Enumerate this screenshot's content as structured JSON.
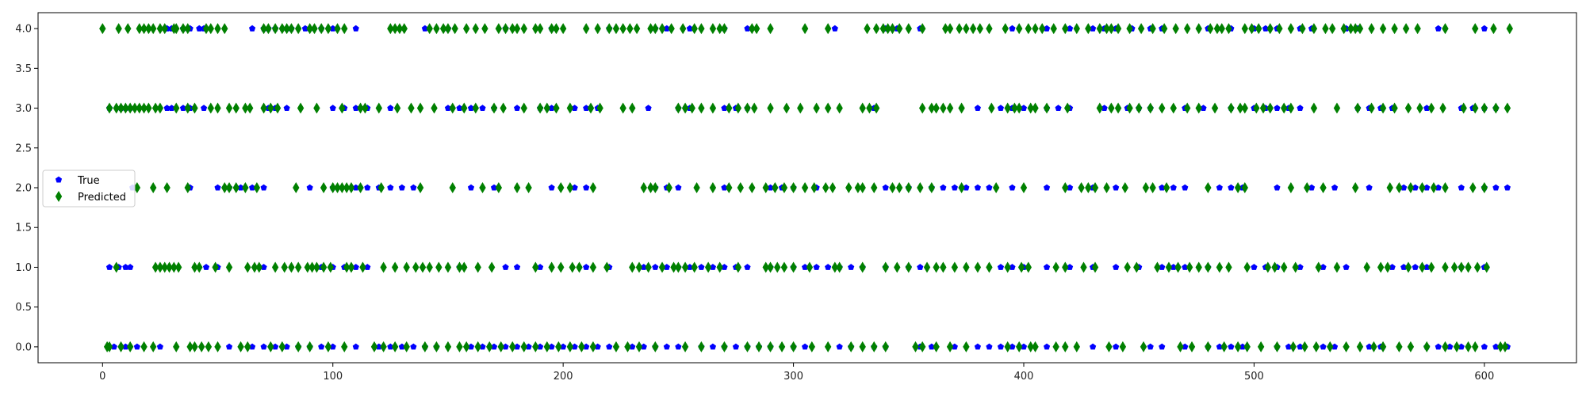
{
  "chart_data": {
    "type": "scatter",
    "title": "",
    "xlabel": "",
    "ylabel": "",
    "xlim": [
      -28,
      640
    ],
    "ylim": [
      -0.2,
      4.2
    ],
    "x_ticks": [
      0,
      100,
      200,
      300,
      400,
      500,
      600
    ],
    "x_tick_labels": [
      "0",
      "100",
      "200",
      "300",
      "400",
      "500",
      "600"
    ],
    "y_ticks": [
      0.0,
      0.5,
      1.0,
      1.5,
      2.0,
      2.5,
      3.0,
      3.5,
      4.0
    ],
    "y_tick_labels": [
      "0.0",
      "0.5",
      "1.0",
      "1.5",
      "2.0",
      "2.5",
      "3.0",
      "3.5",
      "4.0"
    ],
    "grid": false,
    "legend_position": "center-left",
    "legend": [
      {
        "label": "True",
        "color": "#0000ff",
        "marker": "pentagon"
      },
      {
        "label": "Predicted",
        "color": "#008000",
        "marker": "thin-diamond"
      }
    ],
    "series": [
      {
        "name": "True",
        "color": "#0000ff",
        "marker": "pentagon",
        "points": [
          {
            "y": 4,
            "x": [
              28,
              30,
              35,
              38,
              42,
              44,
              65,
              70,
              72,
              75,
              80,
              82,
              88,
              90,
              95,
              100,
              110,
              140,
              150,
              175,
              195,
              220,
              240,
              245,
              255,
              270,
              280,
              318,
              340,
              345,
              355,
              395,
              410,
              420,
              430,
              435,
              440,
              447,
              455,
              460,
              480,
              490,
              500,
              505,
              510,
              520,
              525,
              540,
              545,
              580,
              600
            ]
          },
          {
            "y": 3,
            "x": [
              3,
              8,
              10,
              12,
              28,
              30,
              35,
              38,
              44,
              72,
              75,
              80,
              100,
              105,
              110,
              115,
              125,
              150,
              155,
              160,
              165,
              170,
              180,
              190,
              195,
              205,
              210,
              215,
              237,
              250,
              255,
              270,
              275,
              280,
              335,
              380,
              390,
              395,
              400,
              410,
              415,
              420,
              435,
              445,
              450,
              455,
              470,
              478,
              490,
              500,
              505,
              510,
              515,
              520,
              545,
              550,
              555,
              560,
              575,
              590,
              595,
              600,
              605
            ]
          },
          {
            "y": 2,
            "x": [
              13,
              14,
              38,
              50,
              55,
              60,
              65,
              70,
              90,
              100,
              110,
              115,
              120,
              125,
              130,
              135,
              160,
              170,
              195,
              205,
              210,
              240,
              245,
              250,
              270,
              290,
              295,
              300,
              310,
              340,
              350,
              360,
              365,
              370,
              375,
              380,
              385,
              395,
              410,
              420,
              430,
              440,
              460,
              465,
              470,
              485,
              490,
              495,
              510,
              525,
              535,
              550,
              565,
              570,
              575,
              580,
              590,
              600,
              605,
              610
            ]
          },
          {
            "y": 1,
            "x": [
              3,
              7,
              10,
              12,
              45,
              50,
              70,
              95,
              100,
              105,
              110,
              115,
              155,
              175,
              180,
              190,
              210,
              220,
              235,
              240,
              245,
              250,
              255,
              260,
              265,
              270,
              275,
              280,
              290,
              300,
              305,
              310,
              315,
              320,
              325,
              330,
              340,
              350,
              355,
              390,
              395,
              400,
              410,
              420,
              430,
              440,
              450,
              460,
              465,
              470,
              480,
              500,
              505,
              510,
              520,
              530,
              540,
              560,
              565,
              570,
              575,
              590,
              600
            ]
          },
          {
            "y": 0,
            "x": [
              5,
              10,
              15,
              25,
              55,
              65,
              70,
              75,
              80,
              85,
              90,
              95,
              100,
              110,
              120,
              125,
              130,
              135,
              140,
              145,
              160,
              165,
              170,
              175,
              180,
              185,
              190,
              195,
              200,
              205,
              210,
              215,
              220,
              230,
              235,
              240,
              245,
              250,
              260,
              265,
              270,
              275,
              280,
              285,
              290,
              300,
              305,
              320,
              325,
              335,
              340,
              355,
              360,
              370,
              380,
              385,
              390,
              395,
              400,
              410,
              430,
              440,
              455,
              460,
              470,
              480,
              485,
              490,
              495,
              510,
              515,
              520,
              530,
              535,
              550,
              555,
              575,
              580,
              585,
              590,
              600,
              605,
              610
            ]
          }
        ]
      },
      {
        "name": "Predicted",
        "color": "#008000",
        "marker": "thin-diamond",
        "points": [
          {
            "y": 4,
            "x": [
              0,
              7,
              11,
              16,
              18,
              20,
              22,
              25,
              27,
              31,
              32,
              35,
              37,
              45,
              47,
              50,
              53,
              70,
              72,
              75,
              78,
              80,
              82,
              85,
              90,
              92,
              95,
              98,
              102,
              105,
              125,
              127,
              129,
              131,
              142,
              145,
              148,
              150,
              153,
              158,
              162,
              166,
              172,
              175,
              178,
              180,
              183,
              188,
              190,
              195,
              197,
              200,
              210,
              215,
              220,
              223,
              226,
              229,
              232,
              238,
              240,
              243,
              247,
              252,
              257,
              260,
              265,
              268,
              270,
              282,
              284,
              290,
              305,
              315,
              332,
              336,
              339,
              341,
              343,
              346,
              350,
              356,
              366,
              368,
              372,
              375,
              378,
              381,
              385,
              392,
              398,
              402,
              405,
              408,
              413,
              418,
              423,
              428,
              433,
              436,
              438,
              441,
              446,
              451,
              456,
              461,
              466,
              471,
              476,
              481,
              484,
              486,
              489,
              496,
              499,
              502,
              507,
              511,
              516,
              521,
              526,
              531,
              534,
              539,
              542,
              544,
              546,
              551,
              556,
              561,
              566,
              571,
              583,
              596,
              604,
              611
            ]
          },
          {
            "y": 3,
            "x": [
              3,
              6,
              8,
              10,
              12,
              14,
              16,
              18,
              20,
              23,
              25,
              32,
              37,
              40,
              47,
              50,
              55,
              58,
              62,
              64,
              70,
              73,
              76,
              86,
              93,
              104,
              112,
              114,
              120,
              128,
              134,
              138,
              144,
              152,
              157,
              162,
              170,
              174,
              183,
              190,
              193,
              197,
              203,
              212,
              216,
              226,
              230,
              250,
              253,
              256,
              260,
              265,
              272,
              276,
              280,
              283,
              290,
              297,
              303,
              310,
              315,
              320,
              330,
              333,
              336,
              356,
              360,
              362,
              365,
              368,
              373,
              386,
              393,
              396,
              398,
              403,
              405,
              410,
              419,
              433,
              438,
              441,
              446,
              450,
              455,
              460,
              465,
              471,
              476,
              483,
              490,
              494,
              496,
              501,
              504,
              507,
              513,
              516,
              526,
              536,
              545,
              551,
              556,
              561,
              567,
              572,
              577,
              582,
              591,
              596,
              600,
              605,
              610
            ]
          },
          {
            "y": 2,
            "x": [
              15,
              22,
              28,
              37,
              53,
              55,
              58,
              62,
              67,
              84,
              96,
              100,
              102,
              104,
              106,
              108,
              112,
              121,
              138,
              152,
              165,
              172,
              180,
              185,
              199,
              203,
              213,
              235,
              238,
              240,
              246,
              258,
              265,
              272,
              277,
              282,
              288,
              292,
              296,
              300,
              305,
              309,
              314,
              317,
              324,
              328,
              330,
              335,
              343,
              346,
              350,
              355,
              360,
              373,
              388,
              400,
              418,
              425,
              428,
              431,
              436,
              444,
              453,
              456,
              462,
              480,
              493,
              496,
              516,
              523,
              530,
              544,
              559,
              563,
              568,
              573,
              578,
              583,
              595,
              600
            ]
          },
          {
            "y": 1,
            "x": [
              6,
              23,
              25,
              27,
              29,
              31,
              33,
              40,
              42,
              49,
              55,
              63,
              66,
              68,
              75,
              79,
              82,
              85,
              89,
              91,
              93,
              96,
              99,
              106,
              108,
              113,
              122,
              127,
              132,
              136,
              139,
              142,
              146,
              150,
              155,
              157,
              163,
              169,
              188,
              195,
              199,
              204,
              207,
              213,
              219,
              230,
              233,
              237,
              243,
              248,
              250,
              253,
              257,
              263,
              268,
              276,
              288,
              290,
              293,
              296,
              300,
              307,
              318,
              320,
              330,
              340,
              345,
              350,
              358,
              362,
              365,
              370,
              375,
              380,
              385,
              393,
              399,
              402,
              414,
              418,
              426,
              431,
              445,
              449,
              458,
              463,
              467,
              472,
              476,
              480,
              485,
              489,
              497,
              506,
              509,
              513,
              518,
              528,
              536,
              549,
              555,
              558,
              567,
              573,
              577,
              583,
              587,
              590,
              593,
              597,
              601
            ]
          },
          {
            "y": 0,
            "x": [
              2,
              3,
              8,
              12,
              18,
              22,
              32,
              38,
              40,
              43,
              46,
              50,
              60,
              63,
              73,
              78,
              85,
              90,
              98,
              105,
              118,
              122,
              127,
              132,
              140,
              145,
              150,
              155,
              158,
              163,
              168,
              173,
              178,
              183,
              188,
              193,
              198,
              203,
              208,
              213,
              223,
              228,
              233,
              240,
              253,
              260,
              270,
              280,
              285,
              290,
              295,
              300,
              308,
              315,
              325,
              330,
              335,
              340,
              353,
              356,
              362,
              368,
              375,
              393,
              398,
              403,
              405,
              414,
              418,
              423,
              437,
              443,
              452,
              468,
              473,
              480,
              487,
              493,
              497,
              503,
              510,
              517,
              522,
              527,
              533,
              540,
              546,
              552,
              556,
              563,
              568,
              575,
              583,
              588,
              593,
              596,
              607,
              609
            ]
          }
        ]
      }
    ]
  }
}
